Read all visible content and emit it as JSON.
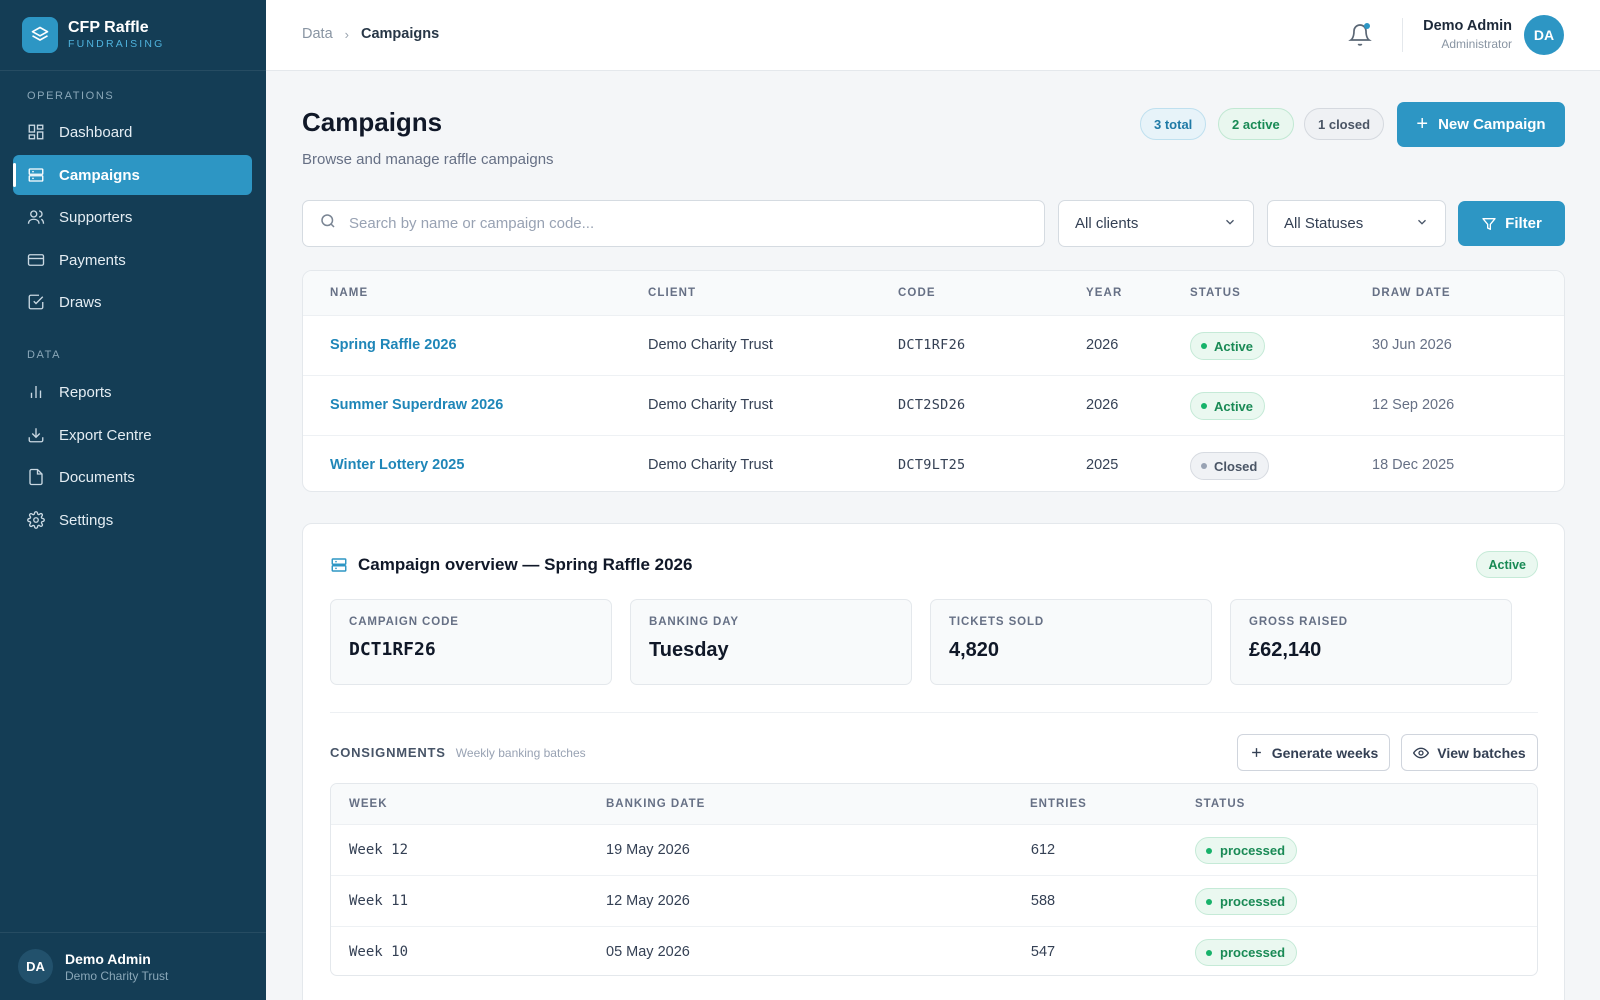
{
  "brand": {
    "name": "CFP Raffle",
    "tagline": "FUNDRAISING"
  },
  "sidebar": {
    "sections": [
      {
        "title": "OPERATIONS"
      },
      {
        "title": "DATA"
      }
    ],
    "items": [
      {
        "label": "Dashboard",
        "icon": "grid-icon"
      },
      {
        "label": "Campaigns",
        "icon": "layout-icon",
        "active": true
      },
      {
        "label": "Supporters",
        "icon": "users-icon"
      },
      {
        "label": "Payments",
        "icon": "credit-card-icon"
      },
      {
        "label": "Draws",
        "icon": "check-square-icon"
      },
      {
        "label": "Reports",
        "icon": "bar-chart-icon"
      },
      {
        "label": "Export Centre",
        "icon": "download-icon"
      },
      {
        "label": "Documents",
        "icon": "file-icon"
      },
      {
        "label": "Settings",
        "icon": "gear-icon"
      }
    ],
    "user": {
      "initials": "DA",
      "name": "Demo Admin",
      "org": "Demo Charity Trust"
    }
  },
  "topbar": {
    "breadcrumb": {
      "parent": "Data",
      "current": "Campaigns"
    },
    "user": {
      "name": "Demo Admin",
      "role": "Administrator",
      "initials": "DA"
    }
  },
  "header": {
    "title": "Campaigns",
    "subtitle": "Browse and manage raffle campaigns",
    "pills": {
      "total": "3 total",
      "active": "2 active",
      "closed": "1 closed"
    },
    "new_button": "New Campaign"
  },
  "filters": {
    "search_placeholder": "Search by name or campaign code...",
    "client_select": "All clients",
    "status_select": "All Statuses",
    "filter_button": "Filter"
  },
  "campaigns": {
    "columns": {
      "name": "NAME",
      "client": "CLIENT",
      "code": "CODE",
      "year": "YEAR",
      "status": "STATUS",
      "draw_date": "DRAW DATE"
    },
    "rows": [
      {
        "name": "Spring Raffle 2026",
        "client": "Demo Charity Trust",
        "code": "DCT1RF26",
        "year": "2026",
        "status": "Active",
        "draw_date": "30 Jun 2026"
      },
      {
        "name": "Summer Superdraw 2026",
        "client": "Demo Charity Trust",
        "code": "DCT2SD26",
        "year": "2026",
        "status": "Active",
        "draw_date": "12 Sep 2026"
      },
      {
        "name": "Winter Lottery 2025",
        "client": "Demo Charity Trust",
        "code": "DCT9LT25",
        "year": "2025",
        "status": "Closed",
        "draw_date": "18 Dec 2025"
      }
    ]
  },
  "overview": {
    "title": "Campaign overview — Spring Raffle 2026",
    "status": "Active",
    "stats": [
      {
        "label": "CAMPAIGN CODE",
        "value": "DCT1RF26"
      },
      {
        "label": "BANKING DAY",
        "value": "Tuesday"
      },
      {
        "label": "TICKETS SOLD",
        "value": "4,820"
      },
      {
        "label": "GROSS RAISED",
        "value": "£62,140"
      }
    ],
    "consignments": {
      "title": "CONSIGNMENTS",
      "subtitle": "Weekly banking batches",
      "generate_button": "Generate weeks",
      "view_button": "View batches",
      "columns": {
        "week": "WEEK",
        "banking_date": "BANKING DATE",
        "entries": "ENTRIES",
        "status": "STATUS"
      },
      "rows": [
        {
          "week": "Week 12",
          "banking_date": "19 May 2026",
          "entries": "612",
          "status": "processed"
        },
        {
          "week": "Week 11",
          "banking_date": "12 May 2026",
          "entries": "588",
          "status": "processed"
        },
        {
          "week": "Week 10",
          "banking_date": "05 May 2026",
          "entries": "547",
          "status": "processed"
        }
      ]
    }
  },
  "colors": {
    "sidebar": "#143d55",
    "accent": "#2d96c4",
    "success": "#17b26a"
  }
}
